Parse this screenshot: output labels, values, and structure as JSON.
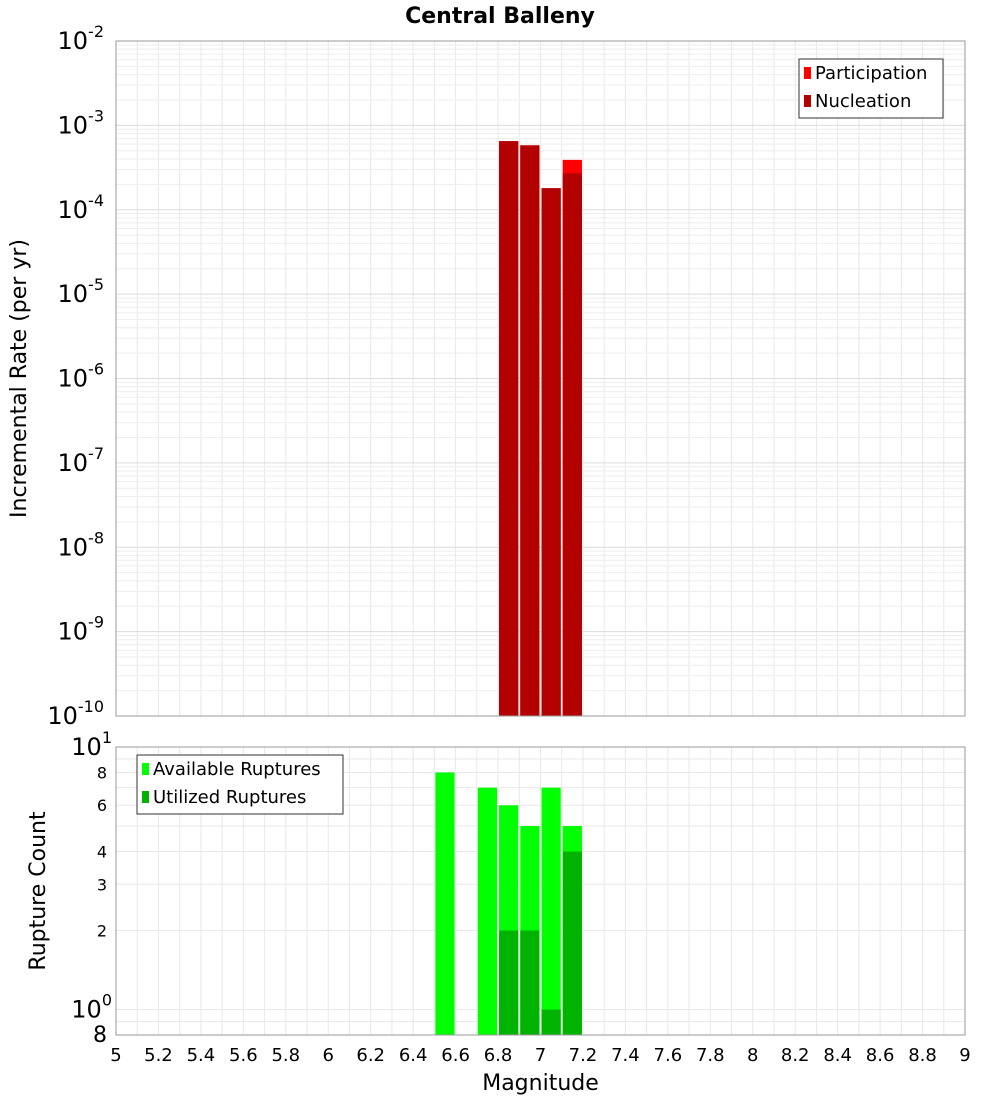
{
  "chart_data": [
    {
      "type": "bar",
      "title": "Central Balleny",
      "xlabel": "",
      "ylabel": "Incremental Rate (per yr)",
      "xlim": [
        5,
        9
      ],
      "ylim": [
        1e-10,
        0.01
      ],
      "yscale": "log",
      "grid": true,
      "bar_width": 0.1,
      "legend_position": "top-right",
      "y_tick_labels": [
        {
          "value": 1e-10,
          "base": "10",
          "exp": "-10"
        },
        {
          "value": 1e-09,
          "base": "10",
          "exp": "-9"
        },
        {
          "value": 1e-08,
          "base": "10",
          "exp": "-8"
        },
        {
          "value": 1e-07,
          "base": "10",
          "exp": "-7"
        },
        {
          "value": 1e-06,
          "base": "10",
          "exp": "-6"
        },
        {
          "value": 1e-05,
          "base": "10",
          "exp": "-5"
        },
        {
          "value": 0.0001,
          "base": "10",
          "exp": "-4"
        },
        {
          "value": 0.001,
          "base": "10",
          "exp": "-3"
        },
        {
          "value": 0.01,
          "base": "10",
          "exp": "-2"
        }
      ],
      "series": [
        {
          "name": "Participation",
          "color": "#ff0000",
          "x": [
            6.85,
            6.95,
            7.05,
            7.15
          ],
          "values": [
            0.00065,
            0.00058,
            0.00018,
            0.00039
          ]
        },
        {
          "name": "Nucleation",
          "color": "#b30000",
          "x": [
            6.85,
            6.95,
            7.05,
            7.15
          ],
          "values": [
            0.00065,
            0.00058,
            0.00018,
            0.00027
          ]
        }
      ]
    },
    {
      "type": "bar",
      "title": "",
      "xlabel": "Magnitude",
      "ylabel": "Rupture Count",
      "xlim": [
        5,
        9
      ],
      "ylim": [
        0.8,
        10
      ],
      "yscale": "log",
      "grid": true,
      "bar_width": 0.1,
      "legend_position": "top-left",
      "x_tick_labels": [
        "5",
        "5.2",
        "5.4",
        "5.6",
        "5.8",
        "6",
        "6.2",
        "6.4",
        "6.6",
        "6.8",
        "7",
        "7.2",
        "7.4",
        "7.6",
        "7.8",
        "8",
        "8.2",
        "8.4",
        "8.6",
        "8.8",
        "9"
      ],
      "y_major_tick_labels": [
        {
          "value": 1,
          "base": "10",
          "exp": "0"
        },
        {
          "value": 10,
          "base": "10",
          "exp": "1"
        }
      ],
      "y_minor_tick_labels": [
        {
          "value": 0.8,
          "label": "8",
          "size": "large"
        },
        {
          "value": 2,
          "label": "2",
          "size": "small"
        },
        {
          "value": 3,
          "label": "3",
          "size": "small"
        },
        {
          "value": 4,
          "label": "4",
          "size": "small"
        },
        {
          "value": 6,
          "label": "6",
          "size": "small"
        },
        {
          "value": 8,
          "label": "8",
          "size": "small"
        }
      ],
      "series": [
        {
          "name": "Available Ruptures",
          "color": "#00ff00",
          "x": [
            6.55,
            6.75,
            6.85,
            6.95,
            7.05,
            7.15
          ],
          "values": [
            8,
            7,
            6,
            5,
            7,
            5
          ]
        },
        {
          "name": "Utilized Ruptures",
          "color": "#00b300",
          "x": [
            6.85,
            6.95,
            7.05,
            7.15
          ],
          "values": [
            2,
            2,
            1,
            4
          ]
        }
      ]
    }
  ]
}
